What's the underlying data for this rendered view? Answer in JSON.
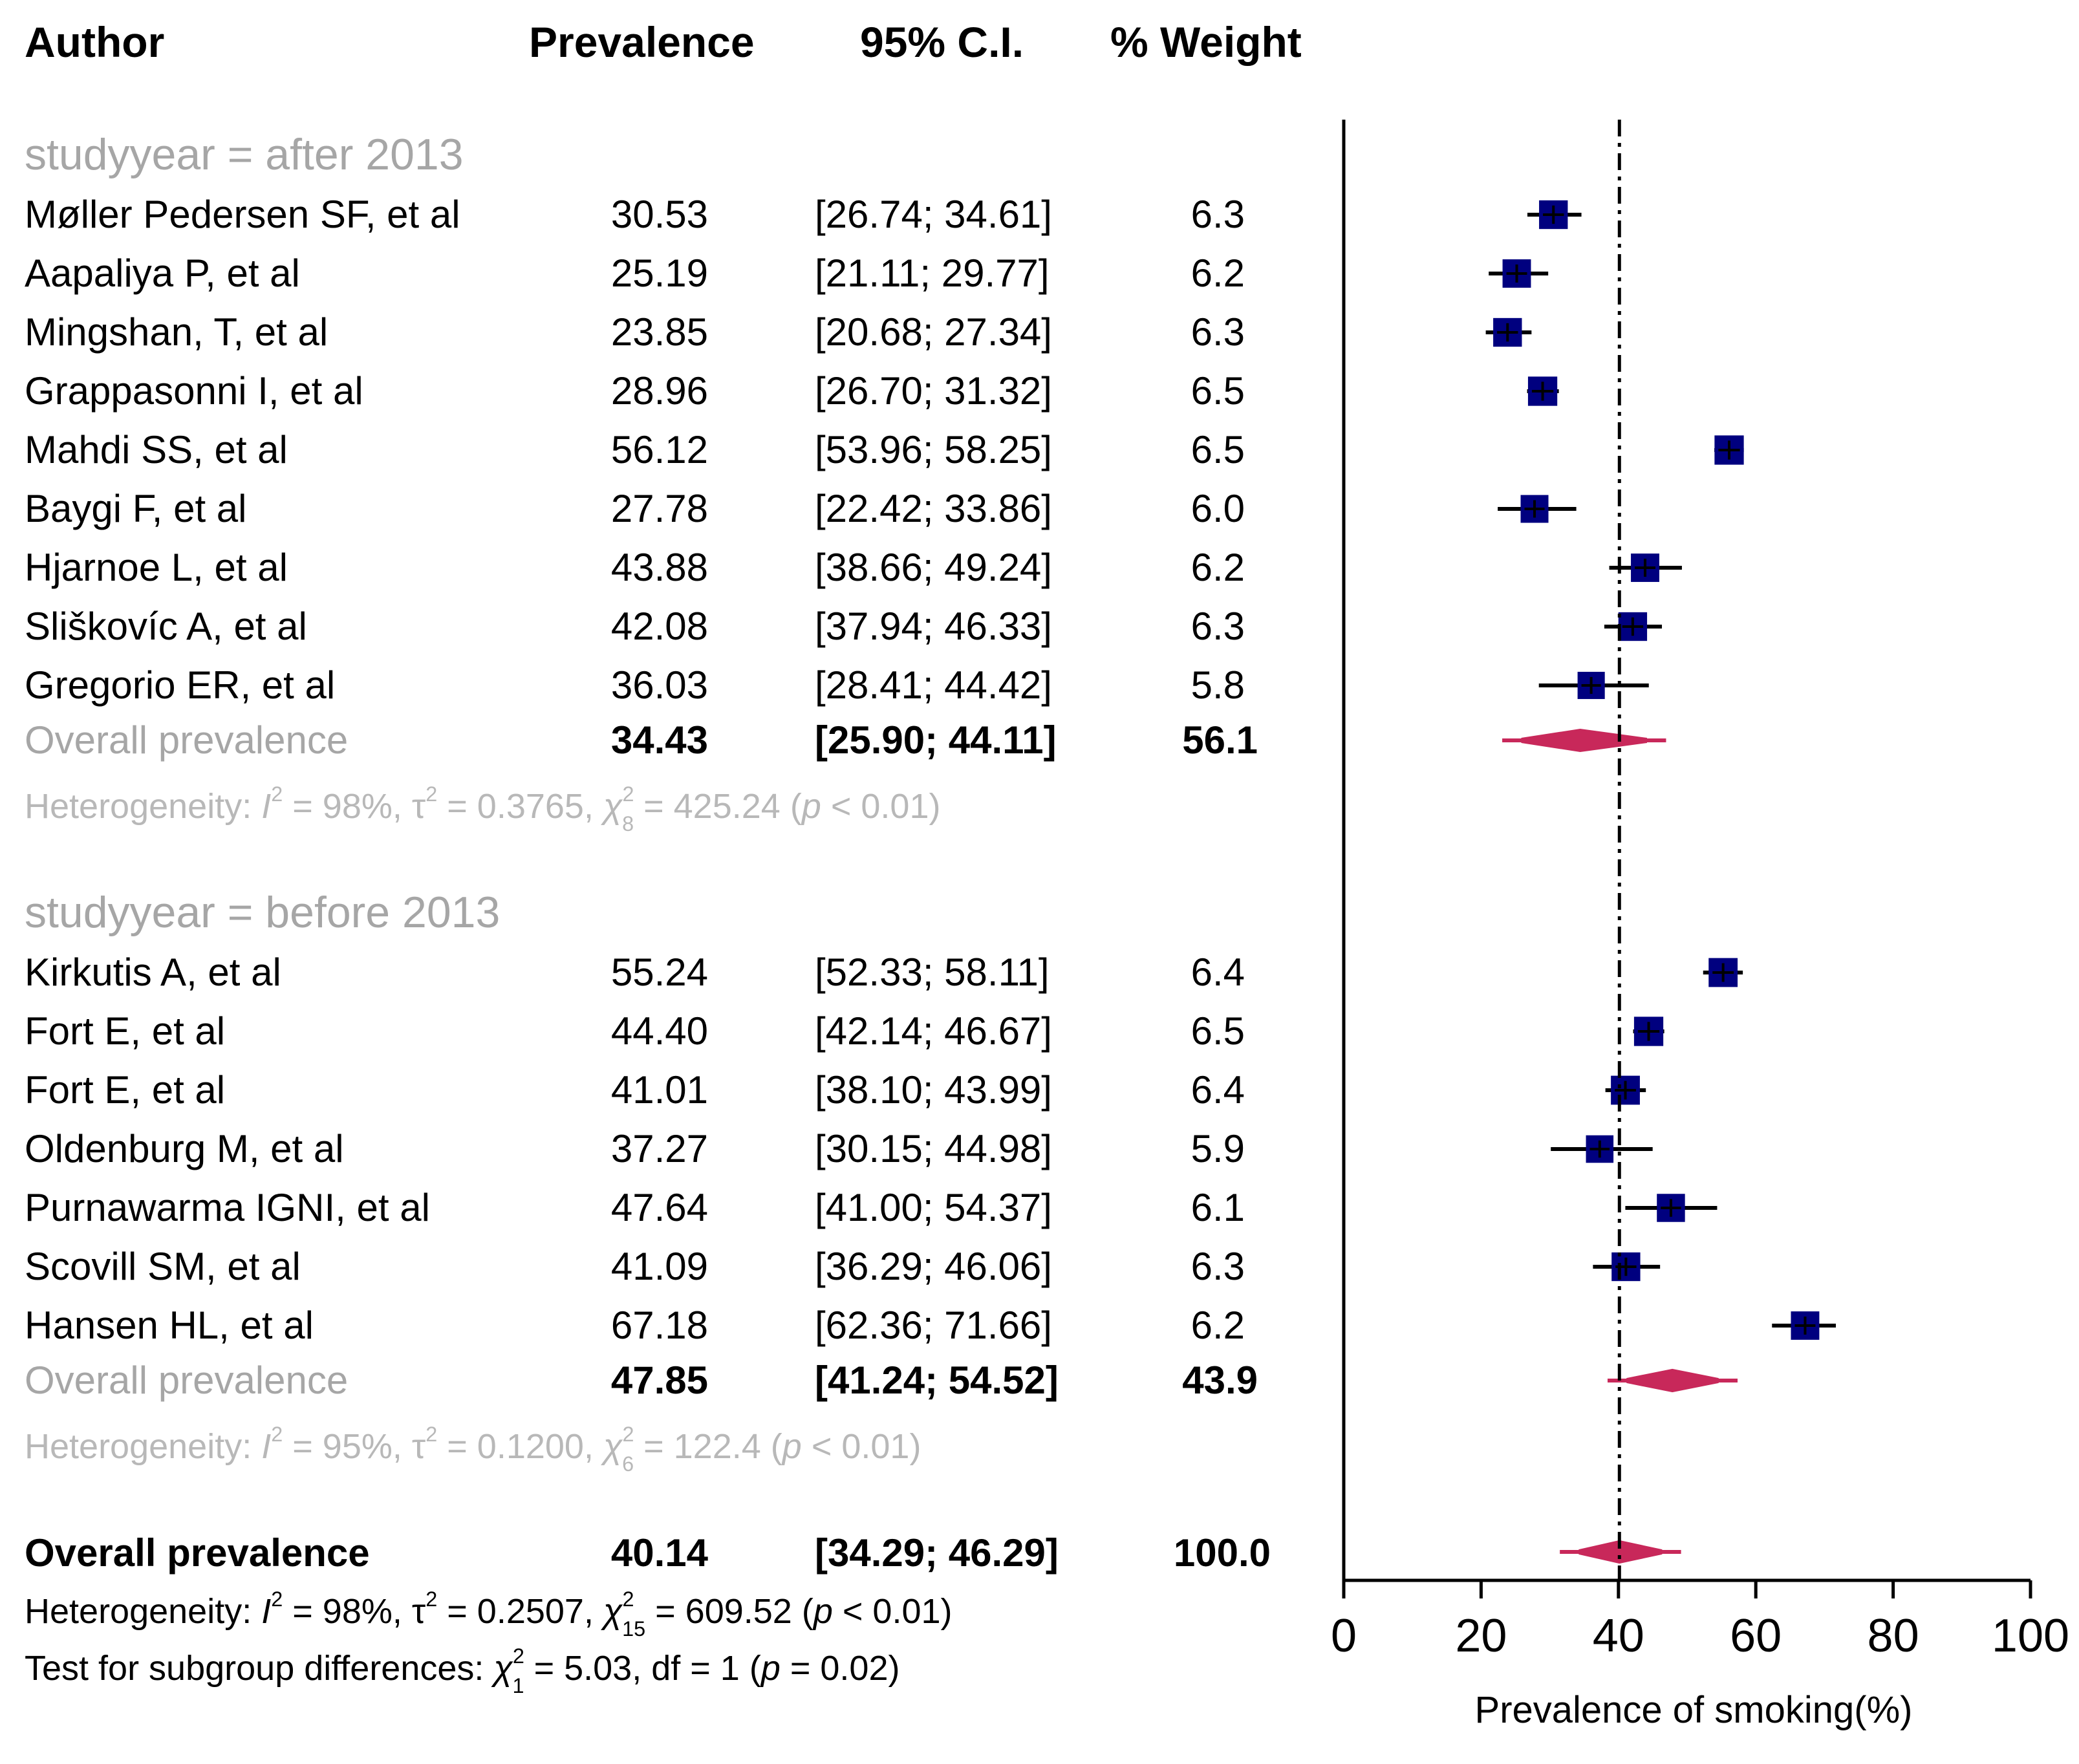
{
  "chart_data": {
    "type": "forest",
    "headers": {
      "author": "Author",
      "prevalence": "Prevalence",
      "ci": "95% C.I.",
      "weight": "% Weight"
    },
    "x_axis": {
      "label": "Prevalence of smoking(%)",
      "ticks": [
        "0",
        "20",
        "40",
        "60",
        "80",
        "100"
      ],
      "range": [
        0,
        100
      ],
      "reference_line": 40.14
    },
    "subgroups": [
      {
        "title": "studyyear = after 2013",
        "studies": [
          {
            "author": "Møller Pedersen SF, et al",
            "prevalence_text": "30.53",
            "ci_text": "[26.74; 34.61]",
            "weight_text": "6.3",
            "est": 30.53,
            "lo": 26.74,
            "hi": 34.61,
            "weight": 6.3
          },
          {
            "author": "Aapaliya P, et al",
            "prevalence_text": "25.19",
            "ci_text": "[21.11; 29.77]",
            "weight_text": "6.2",
            "est": 25.19,
            "lo": 21.11,
            "hi": 29.77,
            "weight": 6.2
          },
          {
            "author": "Mingshan, T, et al",
            "prevalence_text": "23.85",
            "ci_text": "[20.68; 27.34]",
            "weight_text": "6.3",
            "est": 23.85,
            "lo": 20.68,
            "hi": 27.34,
            "weight": 6.3
          },
          {
            "author": "Grappasonni I, et al",
            "prevalence_text": "28.96",
            "ci_text": "[26.70; 31.32]",
            "weight_text": "6.5",
            "est": 28.96,
            "lo": 26.7,
            "hi": 31.32,
            "weight": 6.5
          },
          {
            "author": "Mahdi SS, et al",
            "prevalence_text": "56.12",
            "ci_text": "[53.96; 58.25]",
            "weight_text": "6.5",
            "est": 56.12,
            "lo": 53.96,
            "hi": 58.25,
            "weight": 6.5
          },
          {
            "author": "Baygi F, et al",
            "prevalence_text": "27.78",
            "ci_text": "[22.42; 33.86]",
            "weight_text": "6.0",
            "est": 27.78,
            "lo": 22.42,
            "hi": 33.86,
            "weight": 6.0
          },
          {
            "author": "Hjarnoe L, et al",
            "prevalence_text": "43.88",
            "ci_text": "[38.66; 49.24]",
            "weight_text": "6.2",
            "est": 43.88,
            "lo": 38.66,
            "hi": 49.24,
            "weight": 6.2
          },
          {
            "author": "Sliškovíc A, et al",
            "prevalence_text": "42.08",
            "ci_text": "[37.94; 46.33]",
            "weight_text": "6.3",
            "est": 42.08,
            "lo": 37.94,
            "hi": 46.33,
            "weight": 6.3
          },
          {
            "author": "Gregorio ER, et al",
            "prevalence_text": "36.03",
            "ci_text": "[28.41; 44.42]",
            "weight_text": "5.8",
            "est": 36.03,
            "lo": 28.41,
            "hi": 44.42,
            "weight": 5.8
          }
        ],
        "overall": {
          "label": "Overall prevalence",
          "prevalence_text": "34.43",
          "ci_text": "[25.90; 44.11]",
          "weight_text": "56.1",
          "est": 34.43,
          "lo": 25.9,
          "hi": 44.11,
          "pi_lo": 25.9,
          "pi_hi": 44.11
        },
        "heterogeneity": {
          "prefix": "Heterogeneity: ",
          "i2_sym": "I",
          "i2_val": " = 98%, ",
          "tau_sym": "τ",
          "tau_val": " = 0.3765, ",
          "chi_sym": "χ",
          "chi_df": "8",
          "chi_val": " = 425.24 (",
          "p_sym": "p",
          "p_val": " < 0.01)"
        }
      },
      {
        "title": "studyyear = before 2013",
        "studies": [
          {
            "author": "Kirkutis A, et al",
            "prevalence_text": "55.24",
            "ci_text": "[52.33; 58.11]",
            "weight_text": "6.4",
            "est": 55.24,
            "lo": 52.33,
            "hi": 58.11,
            "weight": 6.4
          },
          {
            "author": "Fort E, et al",
            "prevalence_text": "44.40",
            "ci_text": "[42.14; 46.67]",
            "weight_text": "6.5",
            "est": 44.4,
            "lo": 42.14,
            "hi": 46.67,
            "weight": 6.5
          },
          {
            "author": "Fort E, et al",
            "prevalence_text": "41.01",
            "ci_text": "[38.10; 43.99]",
            "weight_text": "6.4",
            "est": 41.01,
            "lo": 38.1,
            "hi": 43.99,
            "weight": 6.4
          },
          {
            "author": "Oldenburg M, et al",
            "prevalence_text": "37.27",
            "ci_text": "[30.15; 44.98]",
            "weight_text": "5.9",
            "est": 37.27,
            "lo": 30.15,
            "hi": 44.98,
            "weight": 5.9
          },
          {
            "author": "Purnawarma IGNI, et al",
            "prevalence_text": "47.64",
            "ci_text": "[41.00; 54.37]",
            "weight_text": "6.1",
            "est": 47.64,
            "lo": 41.0,
            "hi": 54.37,
            "weight": 6.1
          },
          {
            "author": "Scovill SM, et al",
            "prevalence_text": "41.09",
            "ci_text": "[36.29; 46.06]",
            "weight_text": "6.3",
            "est": 41.09,
            "lo": 36.29,
            "hi": 46.06,
            "weight": 6.3
          },
          {
            "author": "Hansen HL, et al",
            "prevalence_text": "67.18",
            "ci_text": "[62.36; 71.66]",
            "weight_text": "6.2",
            "est": 67.18,
            "lo": 62.36,
            "hi": 71.66,
            "weight": 6.2
          }
        ],
        "overall": {
          "label": "Overall prevalence",
          "prevalence_text": "47.85",
          "ci_text": "[41.24; 54.52]",
          "weight_text": "43.9",
          "est": 47.85,
          "lo": 41.24,
          "hi": 54.52,
          "pi_lo": 41.24,
          "pi_hi": 54.52
        },
        "heterogeneity": {
          "prefix": "Heterogeneity: ",
          "i2_sym": "I",
          "i2_val": " = 95%, ",
          "tau_sym": "τ",
          "tau_val": " = 0.1200, ",
          "chi_sym": "χ",
          "chi_df": "6",
          "chi_val": " = 122.4 (",
          "p_sym": "p",
          "p_val": " < 0.01)"
        }
      }
    ],
    "overall": {
      "label": "Overall prevalence",
      "prevalence_text": "40.14",
      "ci_text": "[34.29; 46.29]",
      "weight_text": "100.0",
      "est": 40.14,
      "lo": 34.29,
      "hi": 46.29,
      "pi_lo": 34.29,
      "pi_hi": 46.29
    },
    "heterogeneity": {
      "prefix": "Heterogeneity: ",
      "i2_sym": "I",
      "i2_val": " = 98%, ",
      "tau_sym": "τ",
      "tau_val": " = 0.2507, ",
      "chi_sym": "χ",
      "chi_df": "15",
      "chi_val": " = 609.52 (",
      "p_sym": "p",
      "p_val": " < 0.01)"
    },
    "subgroup_test": {
      "prefix": "Test for subgroup differences: ",
      "chi_sym": "χ",
      "chi_df": "1",
      "chi_val": " = 5.03, df = 1 (",
      "p_sym": "p",
      "p_val": " = 0.02)"
    },
    "colors": {
      "study_box": "#00007f",
      "summary": "#c8285a",
      "subgroup_label": "#a6a6a6",
      "text": "#000000"
    }
  }
}
